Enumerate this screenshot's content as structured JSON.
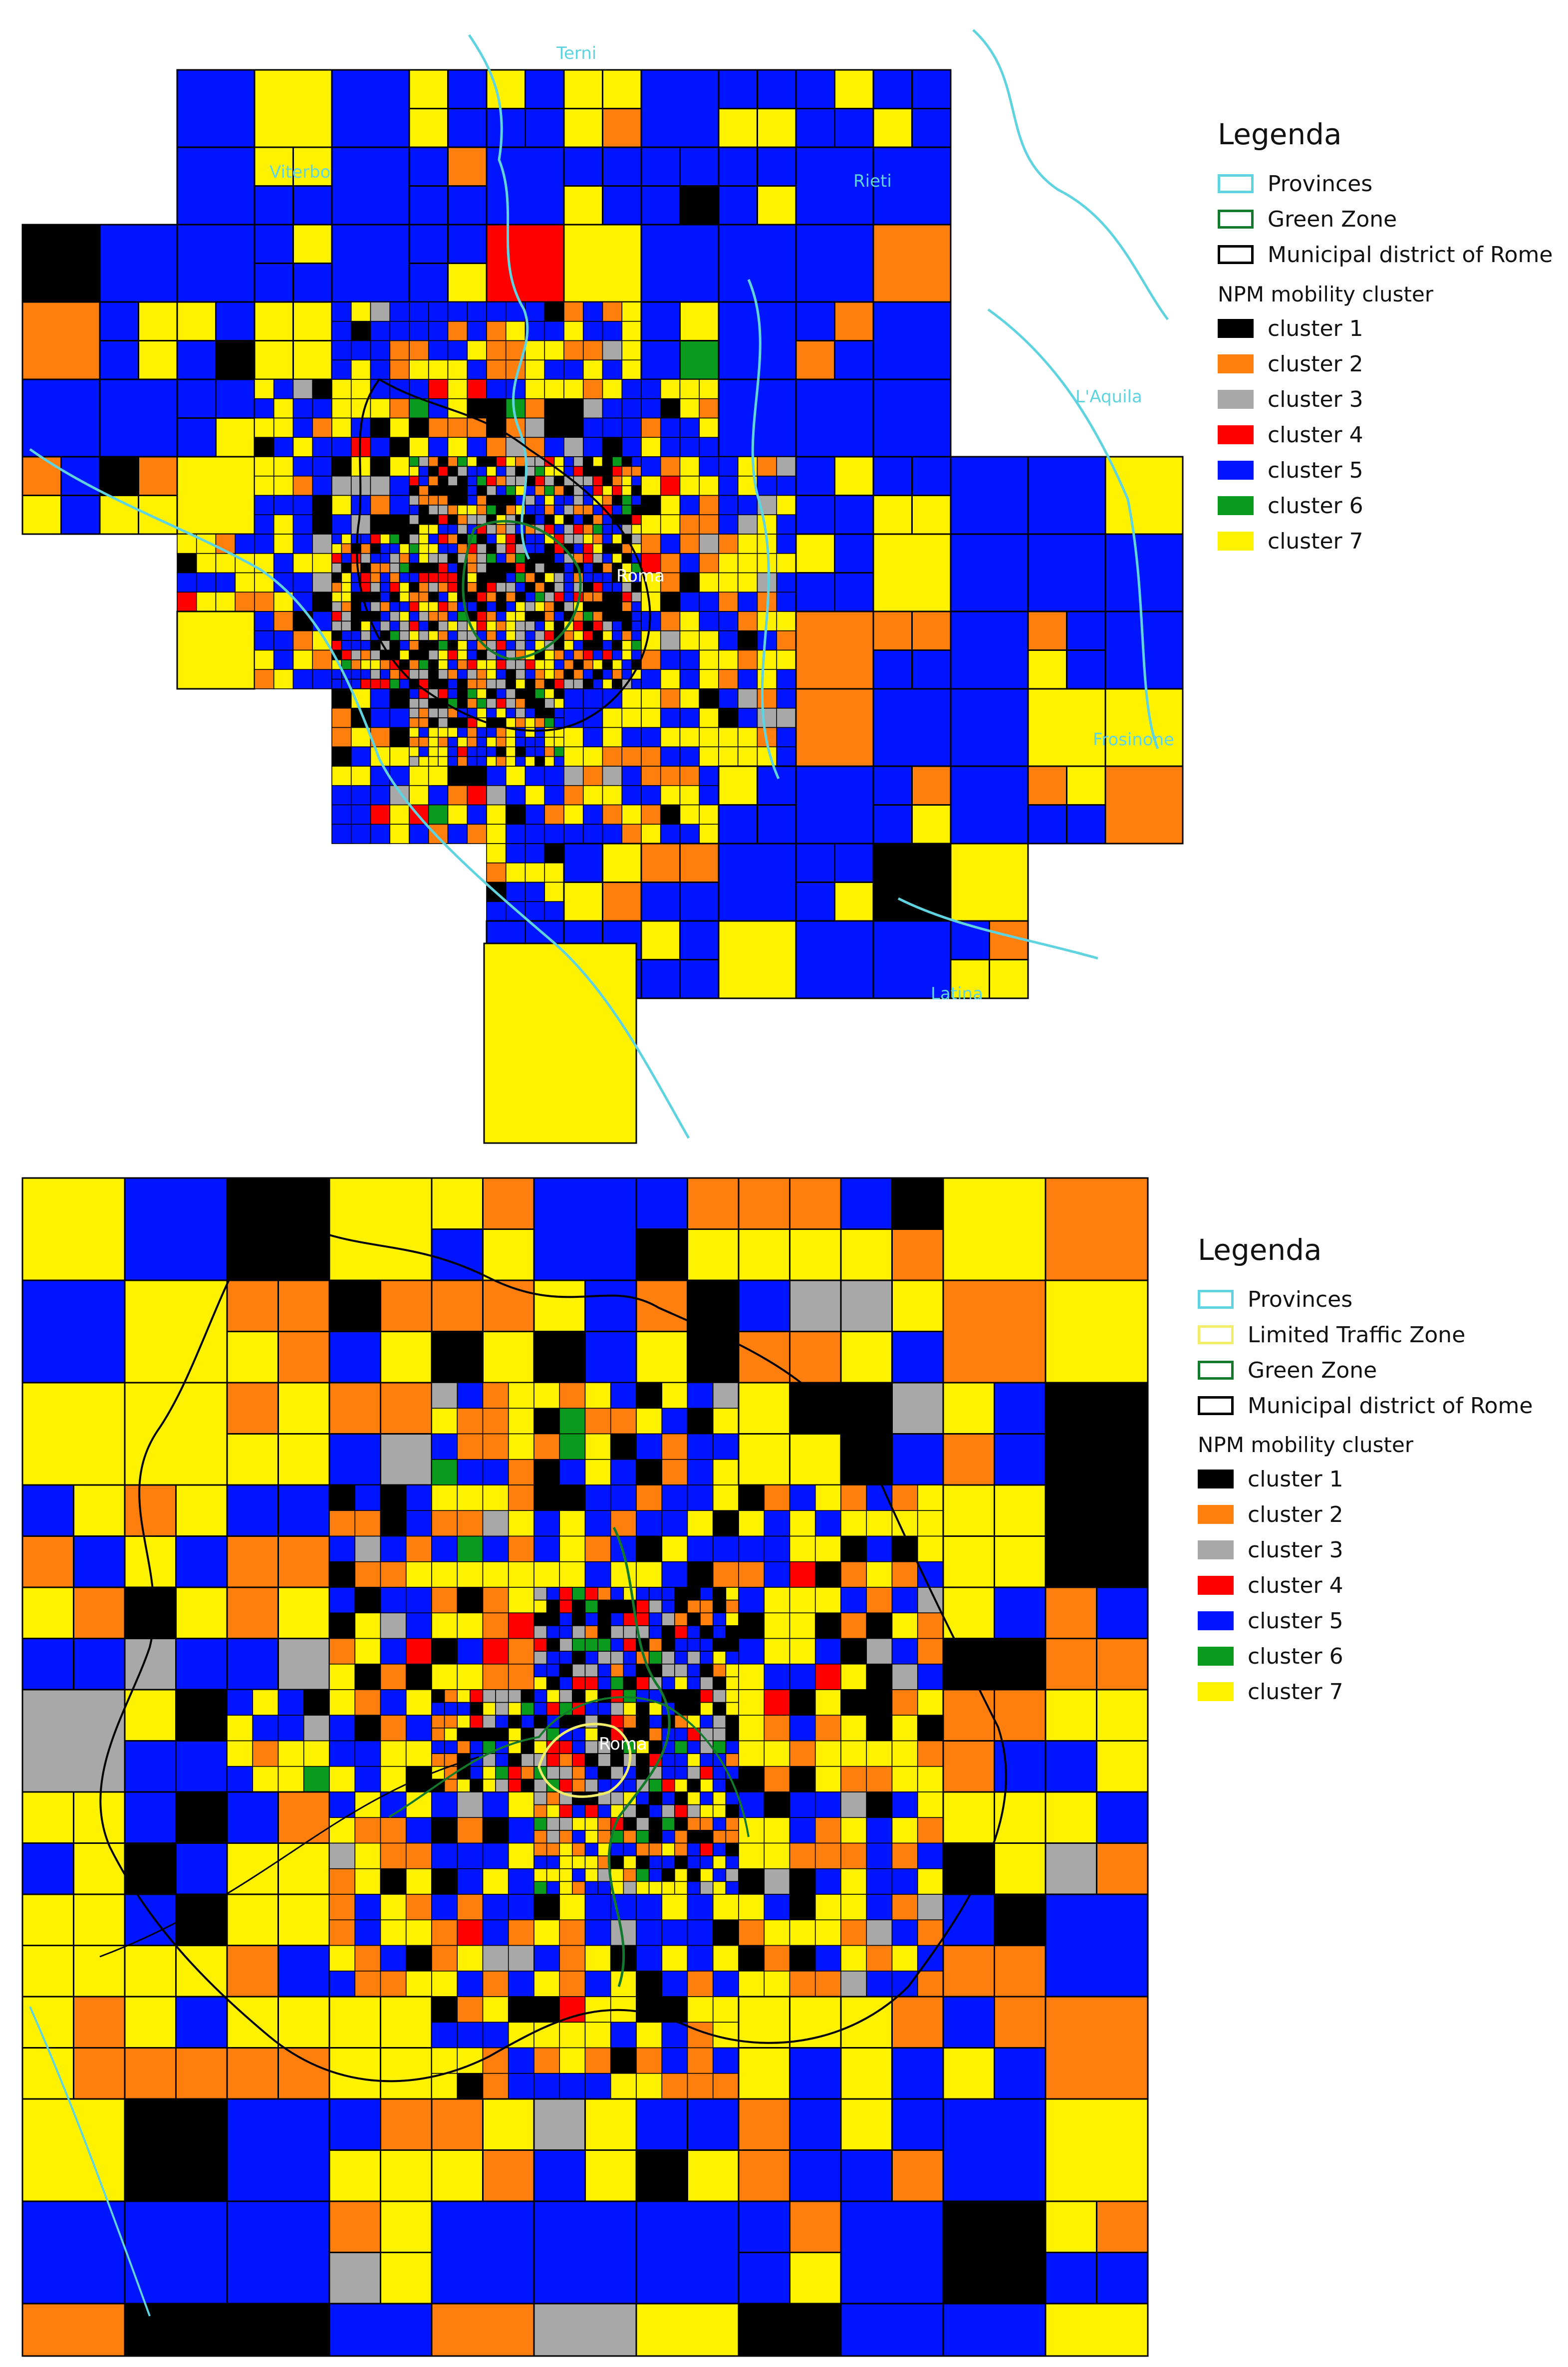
{
  "colors": {
    "cluster1": "#000000",
    "cluster2": "#ff7f0e",
    "cluster3": "#a8a8a8",
    "cluster4": "#ff0000",
    "cluster5": "#0015ff",
    "cluster6": "#0a9a1e",
    "cluster7": "#fff200",
    "provinces": "#5fd3e0",
    "ltz": "#f2ee6b",
    "green_zone": "#137a2c",
    "district": "#000000"
  },
  "top_map": {
    "place_labels": [
      "Terni",
      "Viterbo",
      "Rieti",
      "L'Aquila",
      "Roma",
      "Frosinone",
      "Latina"
    ],
    "legend": {
      "title": "Legenda",
      "layers": [
        {
          "label": "Provinces",
          "color_key": "provinces"
        },
        {
          "label": "Green Zone",
          "color_key": "green_zone"
        },
        {
          "label": "Municipal district of  Rome",
          "color_key": "district"
        }
      ],
      "cluster_heading": "NPM mobility cluster",
      "clusters": [
        {
          "label": "cluster 1",
          "color_key": "cluster1"
        },
        {
          "label": "cluster 2",
          "color_key": "cluster2"
        },
        {
          "label": "cluster 3",
          "color_key": "cluster3"
        },
        {
          "label": "cluster 4",
          "color_key": "cluster4"
        },
        {
          "label": "cluster 5",
          "color_key": "cluster5"
        },
        {
          "label": "cluster 6",
          "color_key": "cluster6"
        },
        {
          "label": "cluster 7",
          "color_key": "cluster7"
        }
      ]
    }
  },
  "bottom_map": {
    "place_labels": [
      "Roma"
    ],
    "legend": {
      "title": "Legenda",
      "layers": [
        {
          "label": "Provinces",
          "color_key": "provinces"
        },
        {
          "label": "Limited Traffic Zone",
          "color_key": "ltz"
        },
        {
          "label": "Green Zone",
          "color_key": "green_zone"
        },
        {
          "label": "Municipal district of  Rome",
          "color_key": "district"
        }
      ],
      "cluster_heading": "NPM mobility cluster",
      "clusters": [
        {
          "label": "cluster 1",
          "color_key": "cluster1"
        },
        {
          "label": "cluster 2",
          "color_key": "cluster2"
        },
        {
          "label": "cluster 3",
          "color_key": "cluster3"
        },
        {
          "label": "cluster 4",
          "color_key": "cluster4"
        },
        {
          "label": "cluster 5",
          "color_key": "cluster5"
        },
        {
          "label": "cluster 6",
          "color_key": "cluster6"
        },
        {
          "label": "cluster 7",
          "color_key": "cluster7"
        }
      ]
    }
  }
}
